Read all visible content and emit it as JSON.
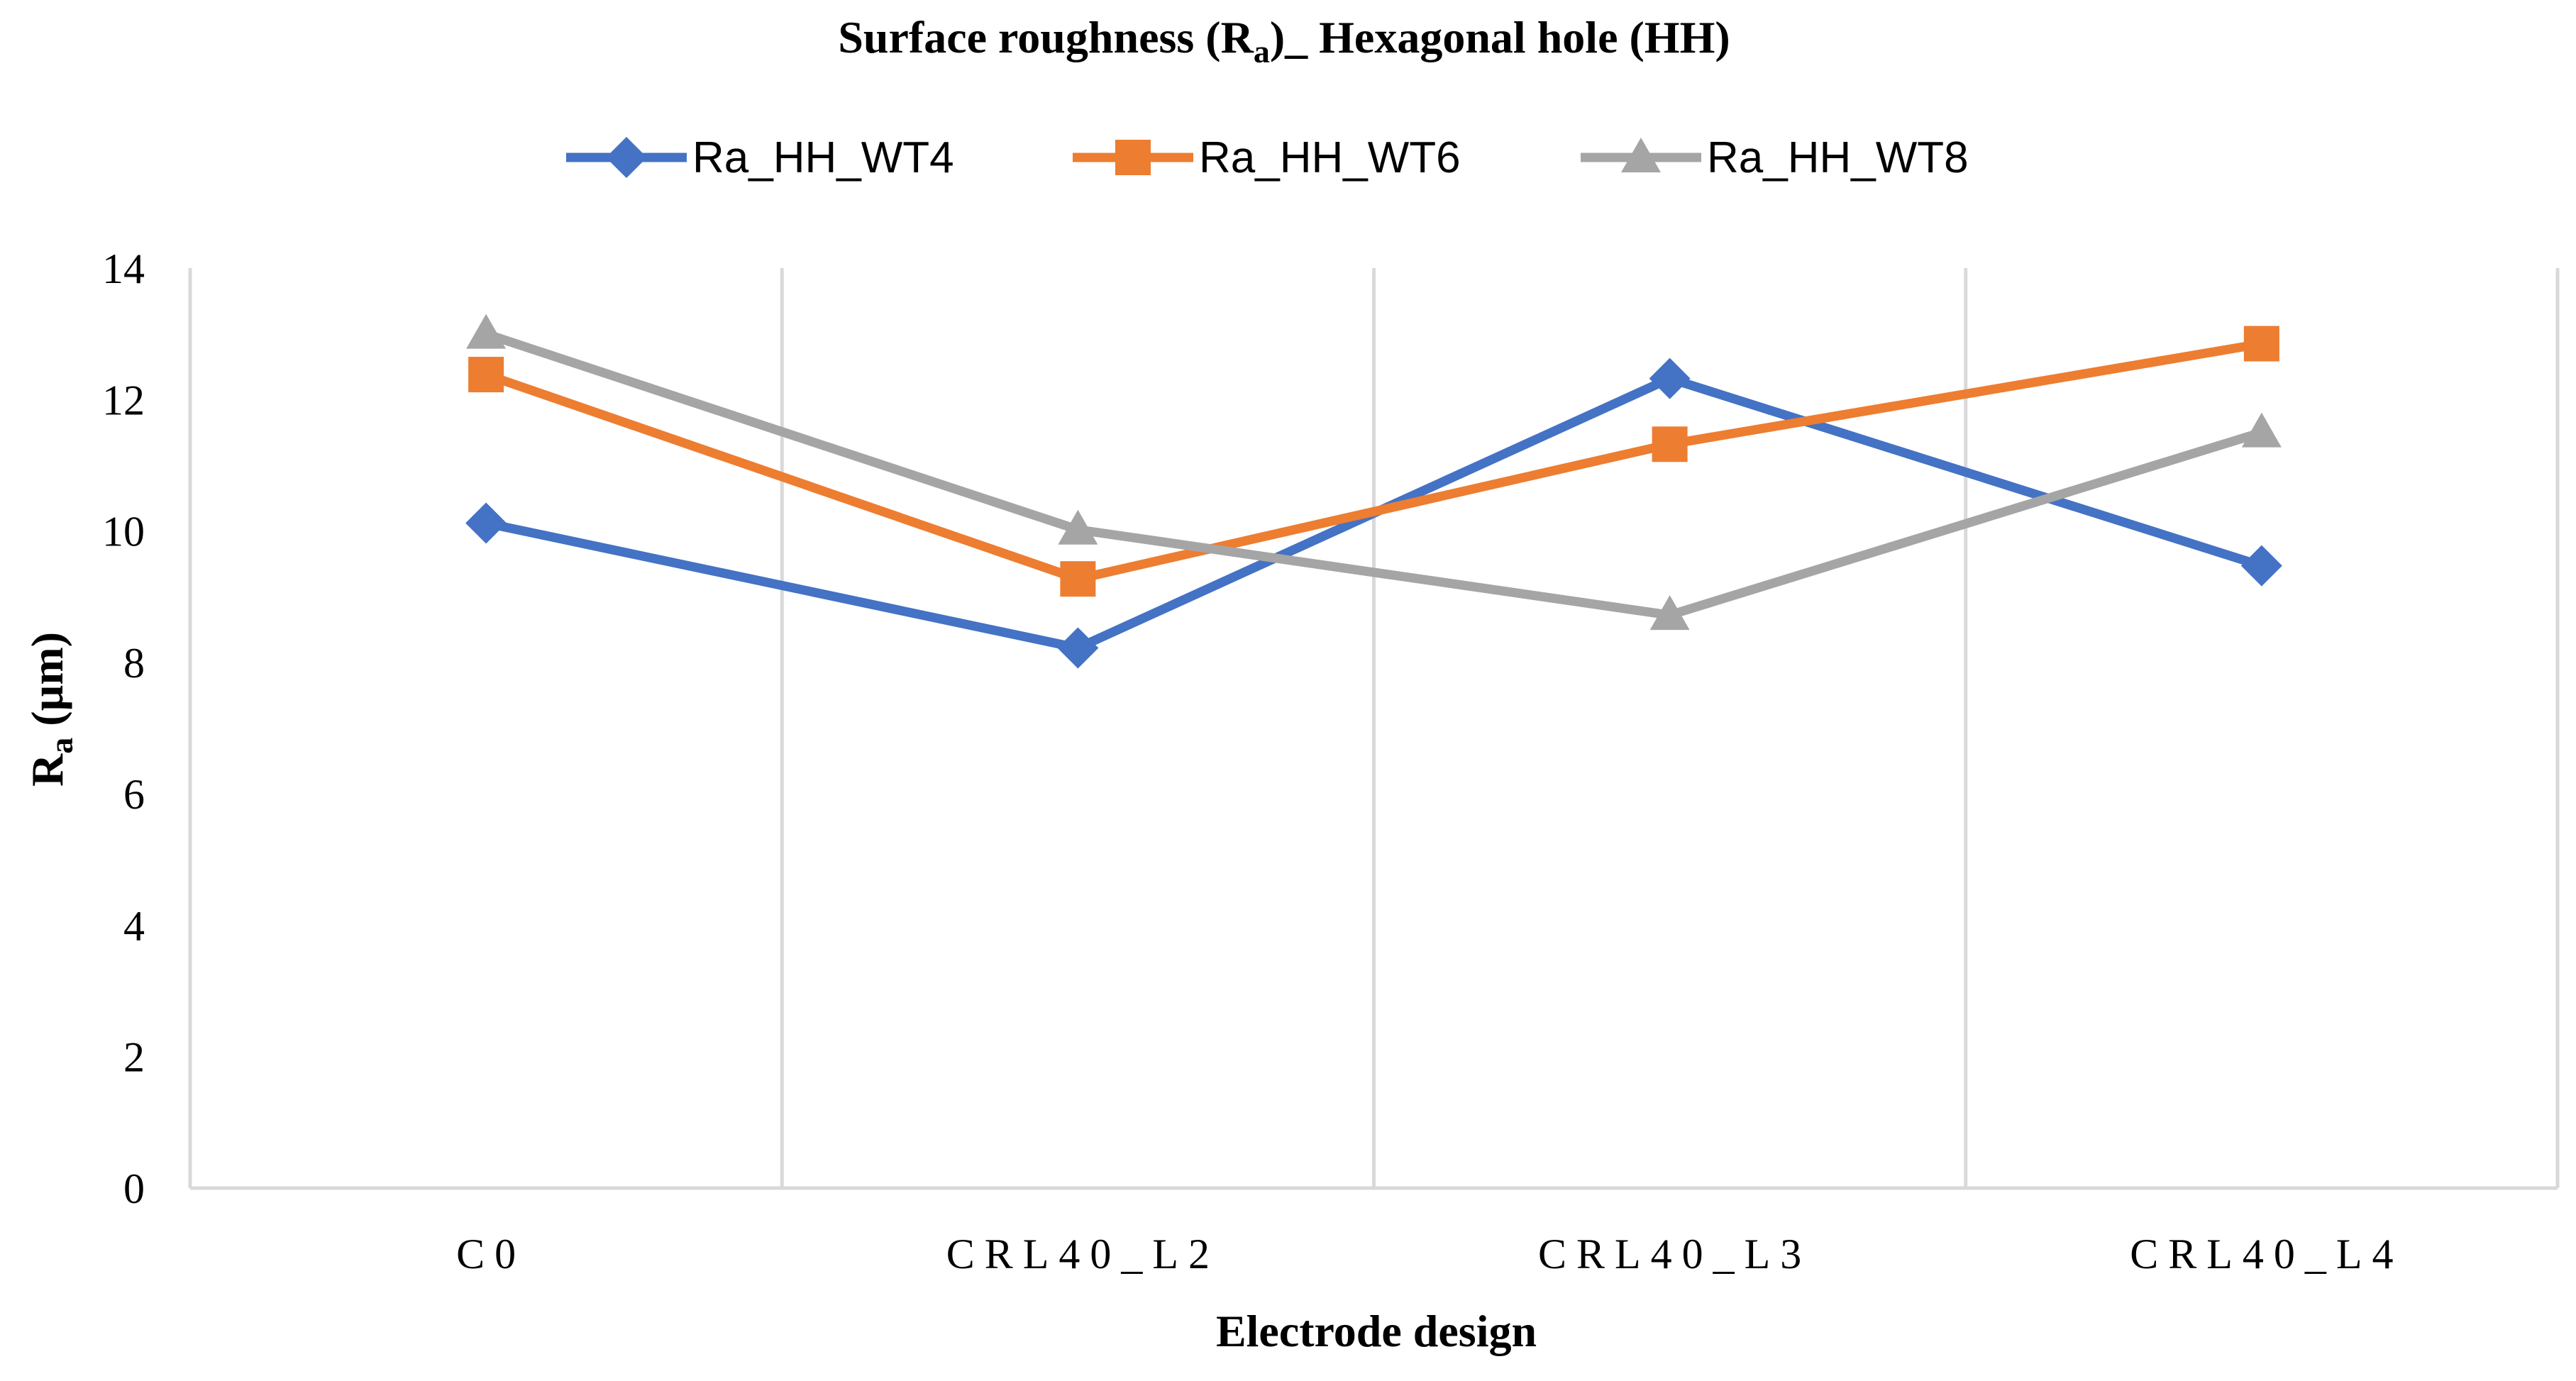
{
  "chart_data": {
    "type": "line",
    "title": {
      "main": "Surface roughness  (R",
      "sub": "a",
      "rest": ")_ Hexagonal hole (HH)"
    },
    "xlabel": "Electrode design",
    "ylabel": {
      "main": "R",
      "sub": "a",
      "rest": " (µm)"
    },
    "categories": [
      "C0",
      "CRL40_L2",
      "CRL40_L3",
      "CRL40_L4"
    ],
    "ylim": [
      0,
      14
    ],
    "yticks": [
      0,
      2,
      4,
      6,
      8,
      10,
      12,
      14
    ],
    "yticklabels": [
      "0",
      "2",
      "4",
      "6",
      "8",
      "10",
      "12",
      "14"
    ],
    "grid": "vertical category separators",
    "legend_position": "top",
    "series": [
      {
        "name": "Ra_HH_WT4",
        "values": [
          10.12,
          8.22,
          12.32,
          9.47
        ],
        "color": "#4472C4",
        "marker": "diamond"
      },
      {
        "name": "Ra_HH_WT6",
        "values": [
          12.38,
          9.27,
          11.32,
          12.85
        ],
        "color": "#ED7D31",
        "marker": "square"
      },
      {
        "name": "Ra_HH_WT8",
        "values": [
          13.0,
          10.02,
          8.72,
          11.5
        ],
        "color": "#A5A5A5",
        "marker": "triangle"
      }
    ],
    "axis_color": "#D9D9D9"
  }
}
